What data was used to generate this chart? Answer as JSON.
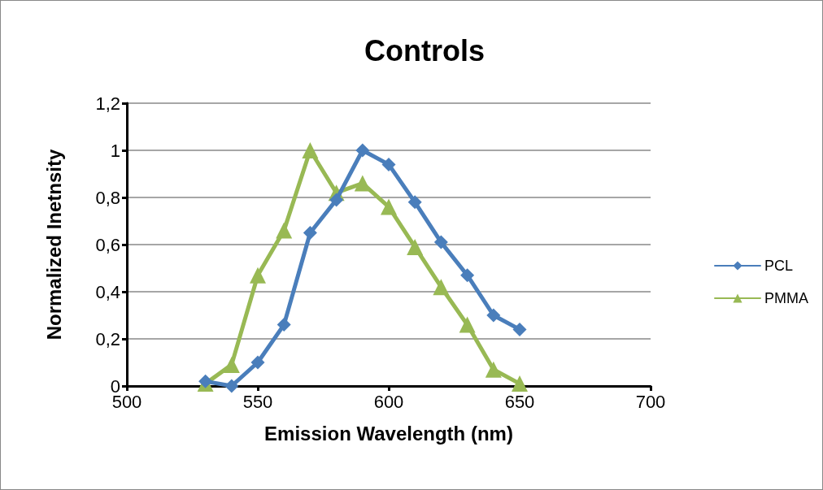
{
  "chart_data": {
    "type": "line",
    "title": "Controls",
    "xlabel": "Emission Wavelength (nm)",
    "ylabel": "Normalized Inetnsity",
    "x": [
      530,
      540,
      550,
      560,
      570,
      580,
      590,
      600,
      610,
      620,
      630,
      640,
      650
    ],
    "series": [
      {
        "name": "PCL",
        "color": "#4a7ebb",
        "marker": "diamond",
        "values": [
          0.02,
          0,
          0.1,
          0.26,
          0.65,
          0.79,
          1,
          0.94,
          0.78,
          0.61,
          0.47,
          0.3,
          0.24
        ]
      },
      {
        "name": "PMMA",
        "color": "#98b954",
        "marker": "triangle",
        "values": [
          0.01,
          0.09,
          0.47,
          0.66,
          1,
          0.82,
          0.86,
          0.76,
          0.59,
          0.42,
          0.26,
          0.07,
          0.01
        ]
      }
    ],
    "xlim": [
      500,
      700
    ],
    "xticks": [
      500,
      550,
      600,
      650,
      700
    ],
    "ylim": [
      0,
      1.2
    ],
    "yticks": [
      0,
      {
        "value": 0.2,
        "label": "0,2"
      },
      {
        "value": 0.4,
        "label": "0,4"
      },
      {
        "value": 0.6,
        "label": "0,6"
      },
      {
        "value": 0.8,
        "label": "0,8"
      },
      1,
      {
        "value": 1.2,
        "label": "1,2"
      }
    ],
    "grid": "y",
    "legend": "right",
    "line_style": "solid"
  }
}
